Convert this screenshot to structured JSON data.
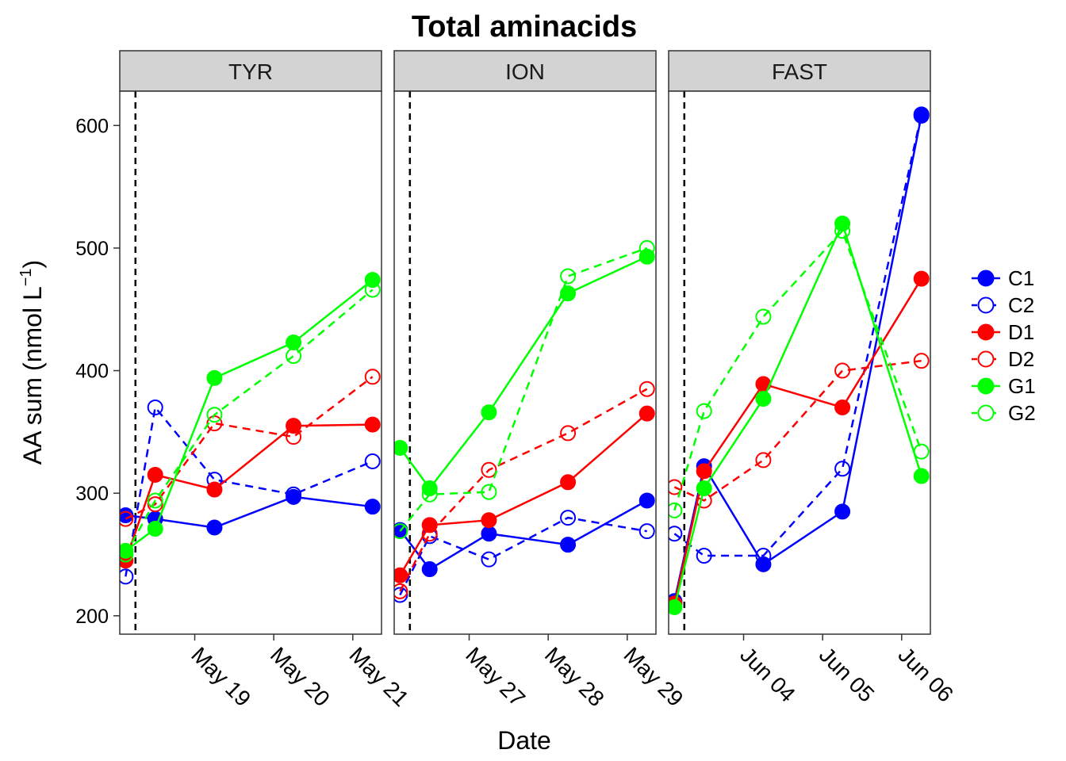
{
  "chart_data": {
    "type": "line",
    "title": "Total aminacids",
    "xlabel": "Date",
    "ylabel": "AA sum",
    "ylabel_unit_base": "nmol L",
    "ylabel_unit_exp": "−1",
    "ylim": [
      185,
      628
    ],
    "yticks": [
      200,
      300,
      400,
      500,
      600
    ],
    "grid": false,
    "legend_position": "right",
    "legend": [
      {
        "name": "C1",
        "color": "#0000ff",
        "filled": true,
        "dashed": false
      },
      {
        "name": "C2",
        "color": "#0000ff",
        "filled": false,
        "dashed": true
      },
      {
        "name": "D1",
        "color": "#ff0000",
        "filled": true,
        "dashed": false
      },
      {
        "name": "D2",
        "color": "#ff0000",
        "filled": false,
        "dashed": true
      },
      {
        "name": "G1",
        "color": "#00ff00",
        "filled": true,
        "dashed": false
      },
      {
        "name": "G2",
        "color": "#00ff00",
        "filled": false,
        "dashed": true
      }
    ],
    "panels": [
      {
        "name": "TYR",
        "xlim": [
          "2015-05-18 01:14",
          "2015-05-21 08:43"
        ],
        "vline": "2015-05-18 06:00",
        "ticks": [
          {
            "x": "2015-05-19 00:00",
            "label": "May 19"
          },
          {
            "x": "2015-05-20 00:00",
            "label": "May 20"
          },
          {
            "x": "2015-05-21 00:00",
            "label": "May 21"
          }
        ],
        "series": [
          {
            "name": "C1",
            "x": [
              "2015-05-18 03:00",
              "2015-05-18 12:00",
              "2015-05-19 06:00",
              "2015-05-20 06:00",
              "2015-05-21 06:00"
            ],
            "y": [
              282,
              279,
              272,
              297,
              289
            ]
          },
          {
            "name": "C2",
            "x": [
              "2015-05-18 03:00",
              "2015-05-18 12:00",
              "2015-05-19 06:00",
              "2015-05-20 06:00",
              "2015-05-21 06:00"
            ],
            "y": [
              232,
              370,
              311,
              299,
              326
            ]
          },
          {
            "name": "D1",
            "x": [
              "2015-05-18 03:00",
              "2015-05-18 12:00",
              "2015-05-19 06:00",
              "2015-05-20 06:00",
              "2015-05-21 06:00"
            ],
            "y": [
              245,
              315,
              303,
              355,
              356
            ]
          },
          {
            "name": "D2",
            "x": [
              "2015-05-18 03:00",
              "2015-05-18 12:00",
              "2015-05-19 06:00",
              "2015-05-20 06:00",
              "2015-05-21 06:00"
            ],
            "y": [
              279,
              291,
              357,
              346,
              395
            ]
          },
          {
            "name": "G1",
            "x": [
              "2015-05-18 03:00",
              "2015-05-18 12:00",
              "2015-05-19 06:00",
              "2015-05-20 06:00",
              "2015-05-21 06:00"
            ],
            "y": [
              253,
              271,
              394,
              423,
              474
            ]
          },
          {
            "name": "G2",
            "x": [
              "2015-05-18 03:00",
              "2015-05-18 12:00",
              "2015-05-19 06:00",
              "2015-05-20 06:00",
              "2015-05-21 06:00"
            ],
            "y": [
              250,
              294,
              364,
              412,
              466
            ]
          }
        ]
      },
      {
        "name": "ION",
        "xlim": [
          "2015-05-26 01:14",
          "2015-05-29 08:43"
        ],
        "vline": "2015-05-26 06:00",
        "ticks": [
          {
            "x": "2015-05-27 00:00",
            "label": "May 27"
          },
          {
            "x": "2015-05-28 00:00",
            "label": "May 28"
          },
          {
            "x": "2015-05-29 00:00",
            "label": "May 29"
          }
        ],
        "series": [
          {
            "name": "C1",
            "x": [
              "2015-05-26 03:00",
              "2015-05-26 12:00",
              "2015-05-27 06:00",
              "2015-05-28 06:00",
              "2015-05-29 06:00"
            ],
            "y": [
              270,
              238,
              267,
              258,
              294
            ]
          },
          {
            "name": "C2",
            "x": [
              "2015-05-26 03:00",
              "2015-05-26 12:00",
              "2015-05-27 06:00",
              "2015-05-28 06:00",
              "2015-05-29 06:00"
            ],
            "y": [
              217,
              265,
              246,
              280,
              269
            ]
          },
          {
            "name": "D1",
            "x": [
              "2015-05-26 03:00",
              "2015-05-26 12:00",
              "2015-05-27 06:00",
              "2015-05-28 06:00",
              "2015-05-29 06:00"
            ],
            "y": [
              233,
              274,
              278,
              309,
              365
            ]
          },
          {
            "name": "D2",
            "x": [
              "2015-05-26 03:00",
              "2015-05-26 12:00",
              "2015-05-27 06:00",
              "2015-05-28 06:00",
              "2015-05-29 06:00"
            ],
            "y": [
              220,
              267,
              319,
              349,
              385
            ]
          },
          {
            "name": "G1",
            "x": [
              "2015-05-26 03:00",
              "2015-05-26 12:00",
              "2015-05-27 06:00",
              "2015-05-28 06:00",
              "2015-05-29 06:00"
            ],
            "y": [
              337,
              304,
              366,
              463,
              493
            ]
          },
          {
            "name": "G2",
            "x": [
              "2015-05-26 03:00",
              "2015-05-26 12:00",
              "2015-05-27 06:00",
              "2015-05-28 06:00",
              "2015-05-29 06:00"
            ],
            "y": [
              269,
              299,
              301,
              477,
              500
            ]
          }
        ]
      },
      {
        "name": "FAST",
        "xlim": [
          "2015-06-03 01:14",
          "2015-06-06 08:43"
        ],
        "vline": "2015-06-03 06:00",
        "ticks": [
          {
            "x": "2015-06-04 00:00",
            "label": "Jun 04"
          },
          {
            "x": "2015-06-05 00:00",
            "label": "Jun 05"
          },
          {
            "x": "2015-06-06 00:00",
            "label": "Jun 06"
          }
        ],
        "series": [
          {
            "name": "C1",
            "x": [
              "2015-06-03 03:00",
              "2015-06-03 12:00",
              "2015-06-04 06:00",
              "2015-06-05 06:00",
              "2015-06-06 06:00"
            ],
            "y": [
              212,
              322,
              242,
              285,
              608
            ]
          },
          {
            "name": "C2",
            "x": [
              "2015-06-03 03:00",
              "2015-06-03 12:00",
              "2015-06-04 06:00",
              "2015-06-05 06:00",
              "2015-06-06 06:00"
            ],
            "y": [
              267,
              249,
              249,
              320,
              609
            ]
          },
          {
            "name": "D1",
            "x": [
              "2015-06-03 03:00",
              "2015-06-03 12:00",
              "2015-06-04 06:00",
              "2015-06-05 06:00",
              "2015-06-06 06:00"
            ],
            "y": [
              210,
              318,
              389,
              370,
              475
            ]
          },
          {
            "name": "D2",
            "x": [
              "2015-06-03 03:00",
              "2015-06-03 12:00",
              "2015-06-04 06:00",
              "2015-06-05 06:00",
              "2015-06-06 06:00"
            ],
            "y": [
              305,
              294,
              327,
              400,
              408
            ]
          },
          {
            "name": "G1",
            "x": [
              "2015-06-03 03:00",
              "2015-06-03 12:00",
              "2015-06-04 06:00",
              "2015-06-05 06:00",
              "2015-06-06 06:00"
            ],
            "y": [
              207,
              304,
              377,
              520,
              314
            ]
          },
          {
            "name": "G2",
            "x": [
              "2015-06-03 03:00",
              "2015-06-03 12:00",
              "2015-06-04 06:00",
              "2015-06-05 06:00",
              "2015-06-06 06:00"
            ],
            "y": [
              286,
              367,
              444,
              514,
              334
            ]
          }
        ]
      }
    ]
  }
}
